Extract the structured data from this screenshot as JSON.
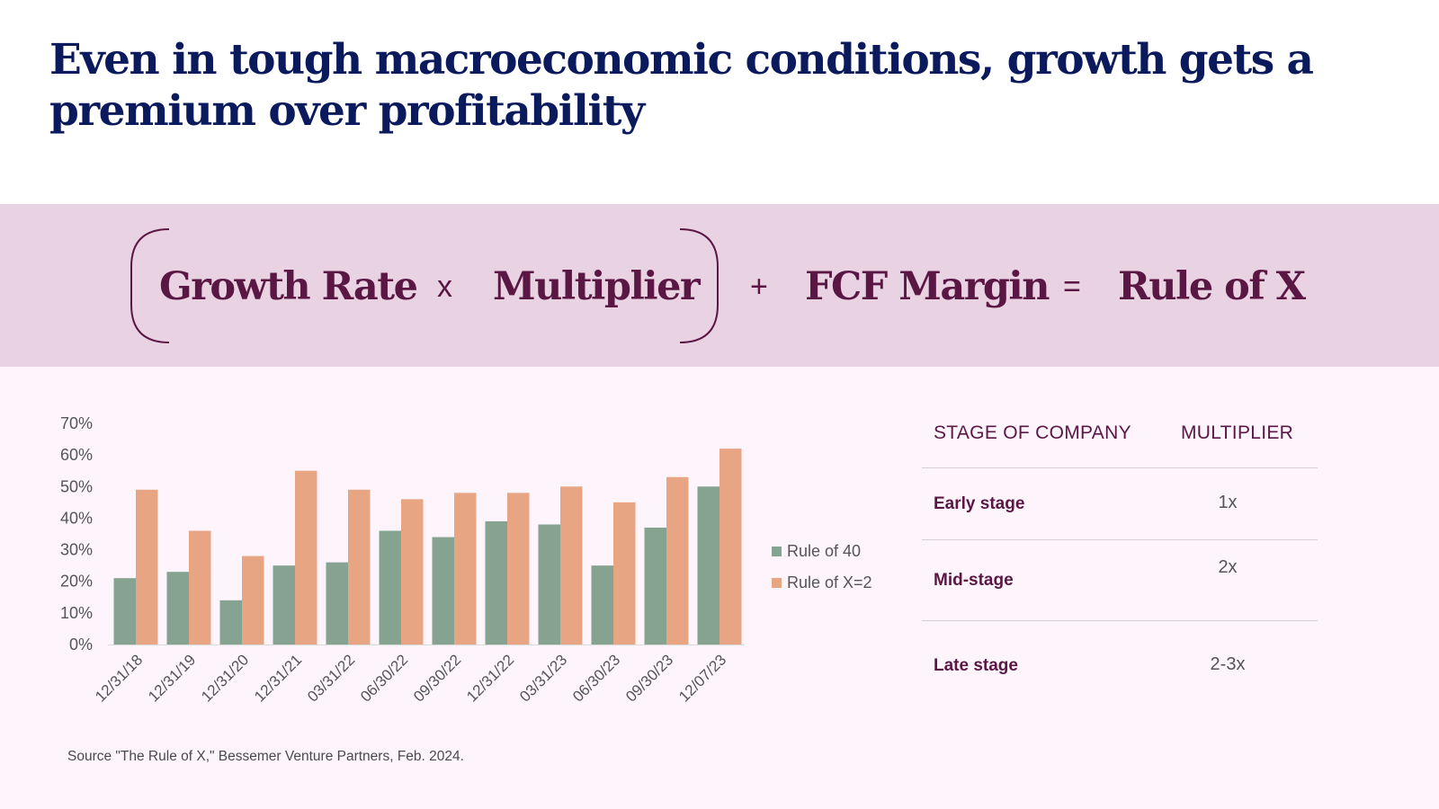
{
  "title": "Even in tough macroeconomic conditions, growth gets a premium over profitability",
  "formula": {
    "term1": "Growth Rate",
    "op_times": "x",
    "term2": "Multiplier",
    "op_plus": "+",
    "term3": "FCF Margin",
    "op_equals": "=",
    "result": "Rule of X"
  },
  "colors": {
    "title": "#0a1a5c",
    "formula_text": "#5b1744",
    "band_bg": "#e9d3e3",
    "lower_bg": "#fdf4fc",
    "rule40": "#86a391",
    "rulex2": "#e8a584"
  },
  "chart_data": {
    "type": "bar",
    "title": "",
    "xlabel": "",
    "ylabel": "",
    "categories": [
      "12/31/18",
      "12/31/19",
      "12/31/20",
      "12/31/21",
      "03/31/22",
      "06/30/22",
      "09/30/22",
      "12/31/22",
      "03/31/23",
      "06/30/23",
      "09/30/23",
      "12/07/23"
    ],
    "series": [
      {
        "name": "Rule of 40",
        "color": "#86a391",
        "values": [
          21,
          23,
          14,
          25,
          26,
          36,
          34,
          39,
          38,
          25,
          37,
          50
        ]
      },
      {
        "name": "Rule of X=2",
        "color": "#e8a584",
        "values": [
          49,
          36,
          28,
          55,
          49,
          46,
          48,
          48,
          50,
          45,
          53,
          62
        ]
      }
    ],
    "y_ticks": [
      "0%",
      "10%",
      "20%",
      "30%",
      "40%",
      "50%",
      "60%",
      "70%"
    ],
    "ylim": [
      0,
      70
    ],
    "grid": false,
    "legend_position": "right"
  },
  "table": {
    "headers": [
      "STAGE OF COMPANY",
      "MULTIPLIER"
    ],
    "rows": [
      {
        "stage": "Early stage",
        "multiplier": "1x"
      },
      {
        "stage": "Mid-stage",
        "multiplier": "2x"
      },
      {
        "stage": "Late stage",
        "multiplier": "2-3x"
      }
    ]
  },
  "source": "Source \"The Rule of X,\" Bessemer Venture Partners, Feb. 2024."
}
